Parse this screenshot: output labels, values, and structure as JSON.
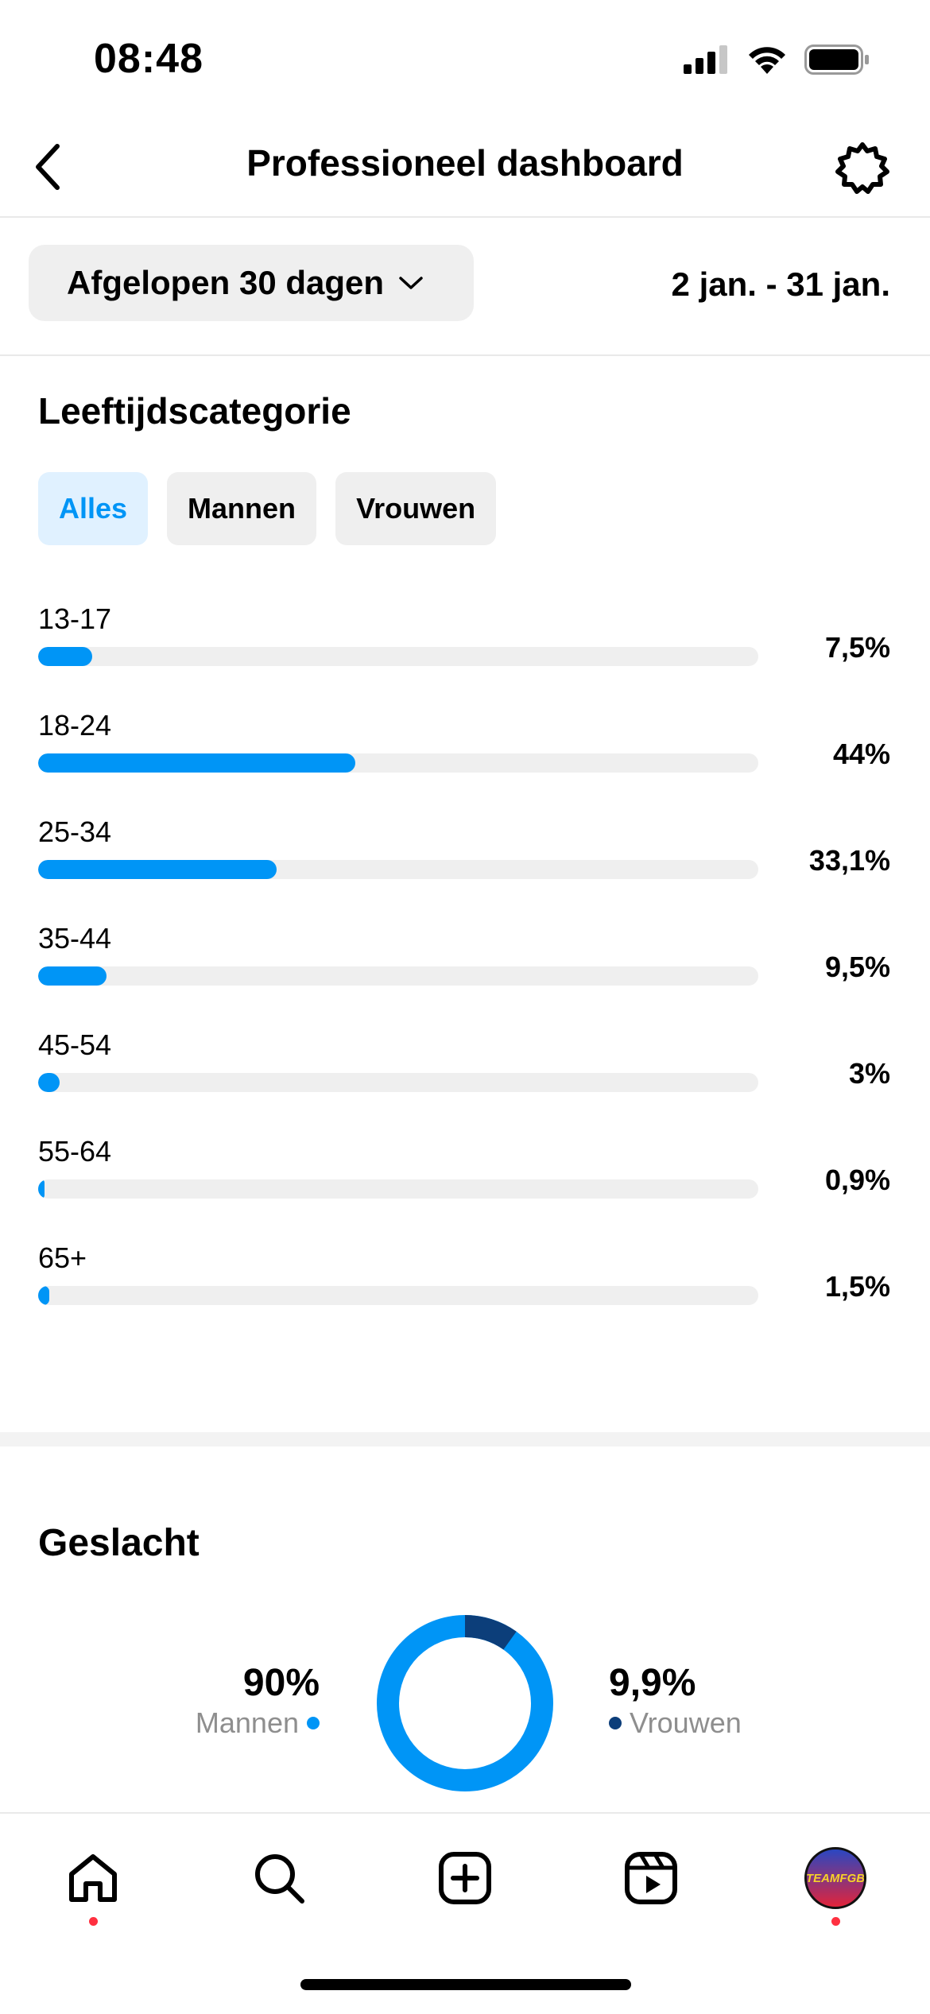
{
  "status_bar": {
    "time": "08:48",
    "icons": [
      "cellular-signal-icon",
      "wifi-icon",
      "battery-icon"
    ]
  },
  "header": {
    "title": "Professioneel dashboard",
    "back_icon": "chevron-left-icon",
    "settings_icon": "gear-icon"
  },
  "filter": {
    "period_label": "Afgelopen 30 dagen",
    "period_icon": "chevron-down-icon",
    "date_range": "2 jan. - 31 jan."
  },
  "age_section": {
    "title": "Leeftijdscategorie",
    "chips": [
      {
        "label": "Alles",
        "selected": true
      },
      {
        "label": "Mannen",
        "selected": false
      },
      {
        "label": "Vrouwen",
        "selected": false
      }
    ],
    "rows": [
      {
        "label": "13-17",
        "value": "7,5%",
        "fraction": 0.075
      },
      {
        "label": "18-24",
        "value": "44%",
        "fraction": 0.44
      },
      {
        "label": "25-34",
        "value": "33,1%",
        "fraction": 0.331
      },
      {
        "label": "35-44",
        "value": "9,5%",
        "fraction": 0.095
      },
      {
        "label": "45-54",
        "value": "3%",
        "fraction": 0.03
      },
      {
        "label": "55-64",
        "value": "0,9%",
        "fraction": 0.009
      },
      {
        "label": "65+",
        "value": "1,5%",
        "fraction": 0.015
      }
    ]
  },
  "gender_section": {
    "title": "Geslacht",
    "men": {
      "value": "90%",
      "label": "Mannen",
      "fraction": 0.9,
      "color": "#0095f6"
    },
    "women": {
      "value": "9,9%",
      "label": "Vrouwen",
      "fraction": 0.099,
      "color": "#0c3e7a"
    }
  },
  "tab_bar": {
    "tabs": [
      {
        "icon": "home-icon",
        "has_notification": true
      },
      {
        "icon": "search-icon",
        "has_notification": false
      },
      {
        "icon": "create-post-icon",
        "has_notification": false
      },
      {
        "icon": "reels-icon",
        "has_notification": false
      },
      {
        "icon": "profile-avatar",
        "has_notification": true
      }
    ],
    "avatar_text": "TEAMFGB"
  },
  "colors": {
    "accent": "#0095f6",
    "track": "#efefef",
    "notification": "#ff3040"
  }
}
